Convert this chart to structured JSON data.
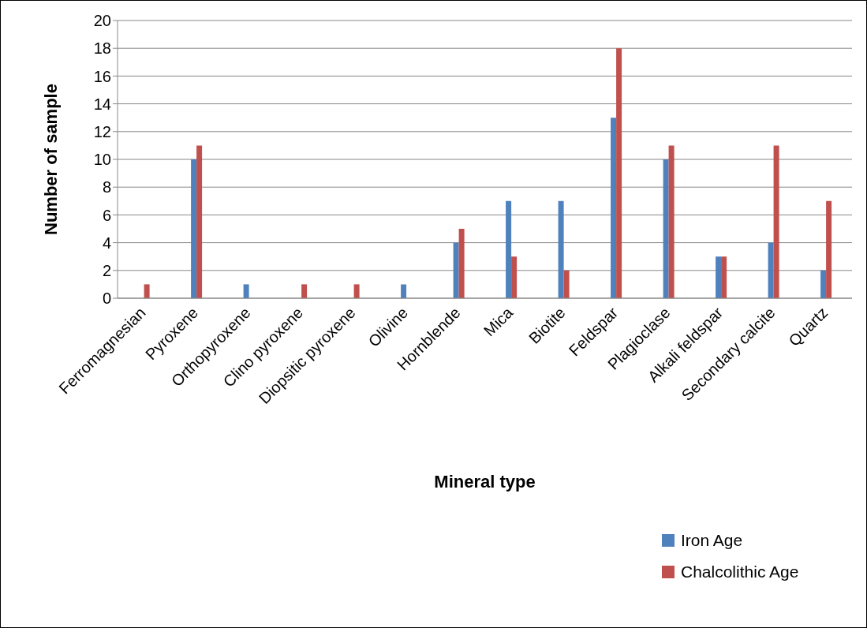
{
  "chart_data": {
    "type": "bar",
    "xlabel": "Mineral type",
    "ylabel": "Number of sample",
    "categories": [
      "Ferromagnesian",
      "Pyroxene",
      "Orthopyroxene",
      "Clino pyroxene",
      "Diopsitic pyroxene",
      "Olivine",
      "Hornblende",
      "Mica",
      "Biotite",
      "Feldspar",
      "Plagioclase",
      "Alkali feldspar",
      "Secondary calcite",
      "Quartz"
    ],
    "series": [
      {
        "name": "Iron Age",
        "color": "#4f81bd",
        "values": [
          0,
          10,
          1,
          0,
          0,
          1,
          4,
          7,
          7,
          13,
          10,
          3,
          4,
          2
        ]
      },
      {
        "name": "Chalcolithic Age",
        "color": "#c0504d",
        "values": [
          1,
          11,
          0,
          1,
          1,
          0,
          5,
          3,
          2,
          18,
          11,
          3,
          11,
          7
        ]
      }
    ],
    "ylim": [
      0,
      20
    ],
    "yticks": [
      0,
      2,
      4,
      6,
      8,
      10,
      12,
      14,
      16,
      18,
      20
    ],
    "grid": "y",
    "legend": "bottom right"
  }
}
